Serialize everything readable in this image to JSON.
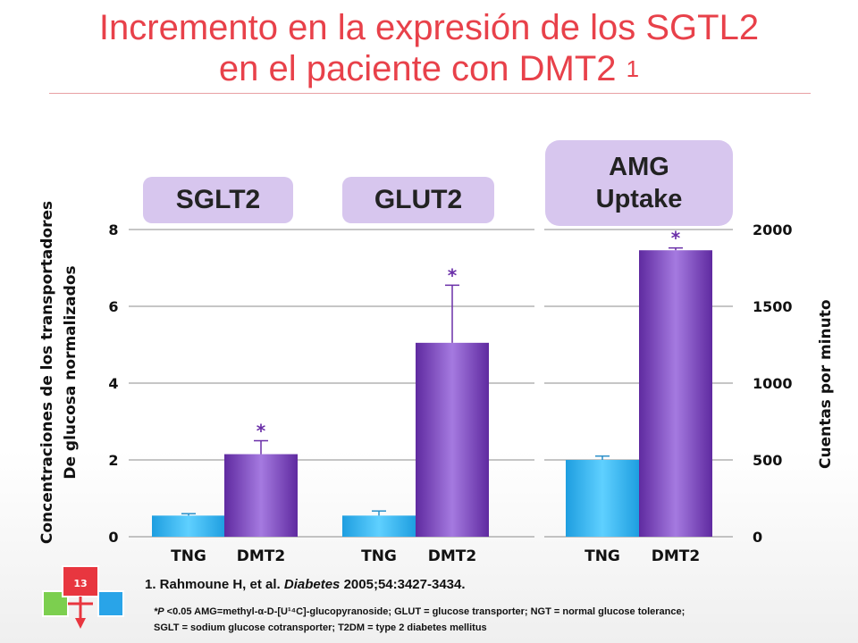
{
  "slide": {
    "title_line1": "Incremento en la expresión de los SGTL2",
    "title_line2": "en el paciente con DMT2",
    "title_sup": "1",
    "page_number": "13",
    "reference_prefix": "1. Rahmoune H, et al. ",
    "reference_journal": "Diabetes",
    "reference_suffix": " 2005;54:3427-3434.",
    "note_p": "*P",
    "note_line1_rest": " <0.05      AMG=methyl-α-D-[U¹⁴C]-glucopyranoside; GLUT = glucose transporter; NGT = normal glucose tolerance;",
    "note_line2": "SGLT = sodium glucose cotransporter; T2DM = type 2 diabetes mellitus"
  },
  "colors": {
    "title": "#e8414a",
    "tng_bar": "#2bb3ee",
    "dmt2_bar": "#7d3fbf",
    "badge": "#d7c6ee",
    "significance": "#6a2fa8"
  },
  "chart_data": [
    {
      "type": "bar",
      "title": "SGLT2",
      "categories": [
        "TNG",
        "DMT2"
      ],
      "values": [
        0.55,
        2.15
      ],
      "errors": [
        0.05,
        0.35
      ],
      "significant": [
        false,
        true
      ],
      "ylabel": "Concentraciones de los transportadores De glucosa normalizados",
      "ylim": [
        0,
        8
      ],
      "yticks": [
        0,
        2,
        4,
        6,
        8
      ],
      "grid": true
    },
    {
      "type": "bar",
      "title": "GLUT2",
      "categories": [
        "TNG",
        "DMT2"
      ],
      "values": [
        0.55,
        5.05
      ],
      "errors": [
        0.12,
        1.5
      ],
      "significant": [
        false,
        true
      ],
      "ylim": [
        0,
        8
      ],
      "yticks": [
        0,
        2,
        4,
        6,
        8
      ],
      "grid": true
    },
    {
      "type": "bar",
      "title": "AMG Uptake",
      "title_lines": [
        "AMG",
        "Uptake"
      ],
      "categories": [
        "TNG",
        "DMT2"
      ],
      "values": [
        500,
        1865
      ],
      "errors": [
        25,
        15
      ],
      "significant": [
        false,
        true
      ],
      "ylabel": "Cuentas por minuto",
      "ylim": [
        0,
        2000
      ],
      "yticks": [
        0,
        500,
        1000,
        1500,
        2000
      ],
      "grid": true
    }
  ]
}
